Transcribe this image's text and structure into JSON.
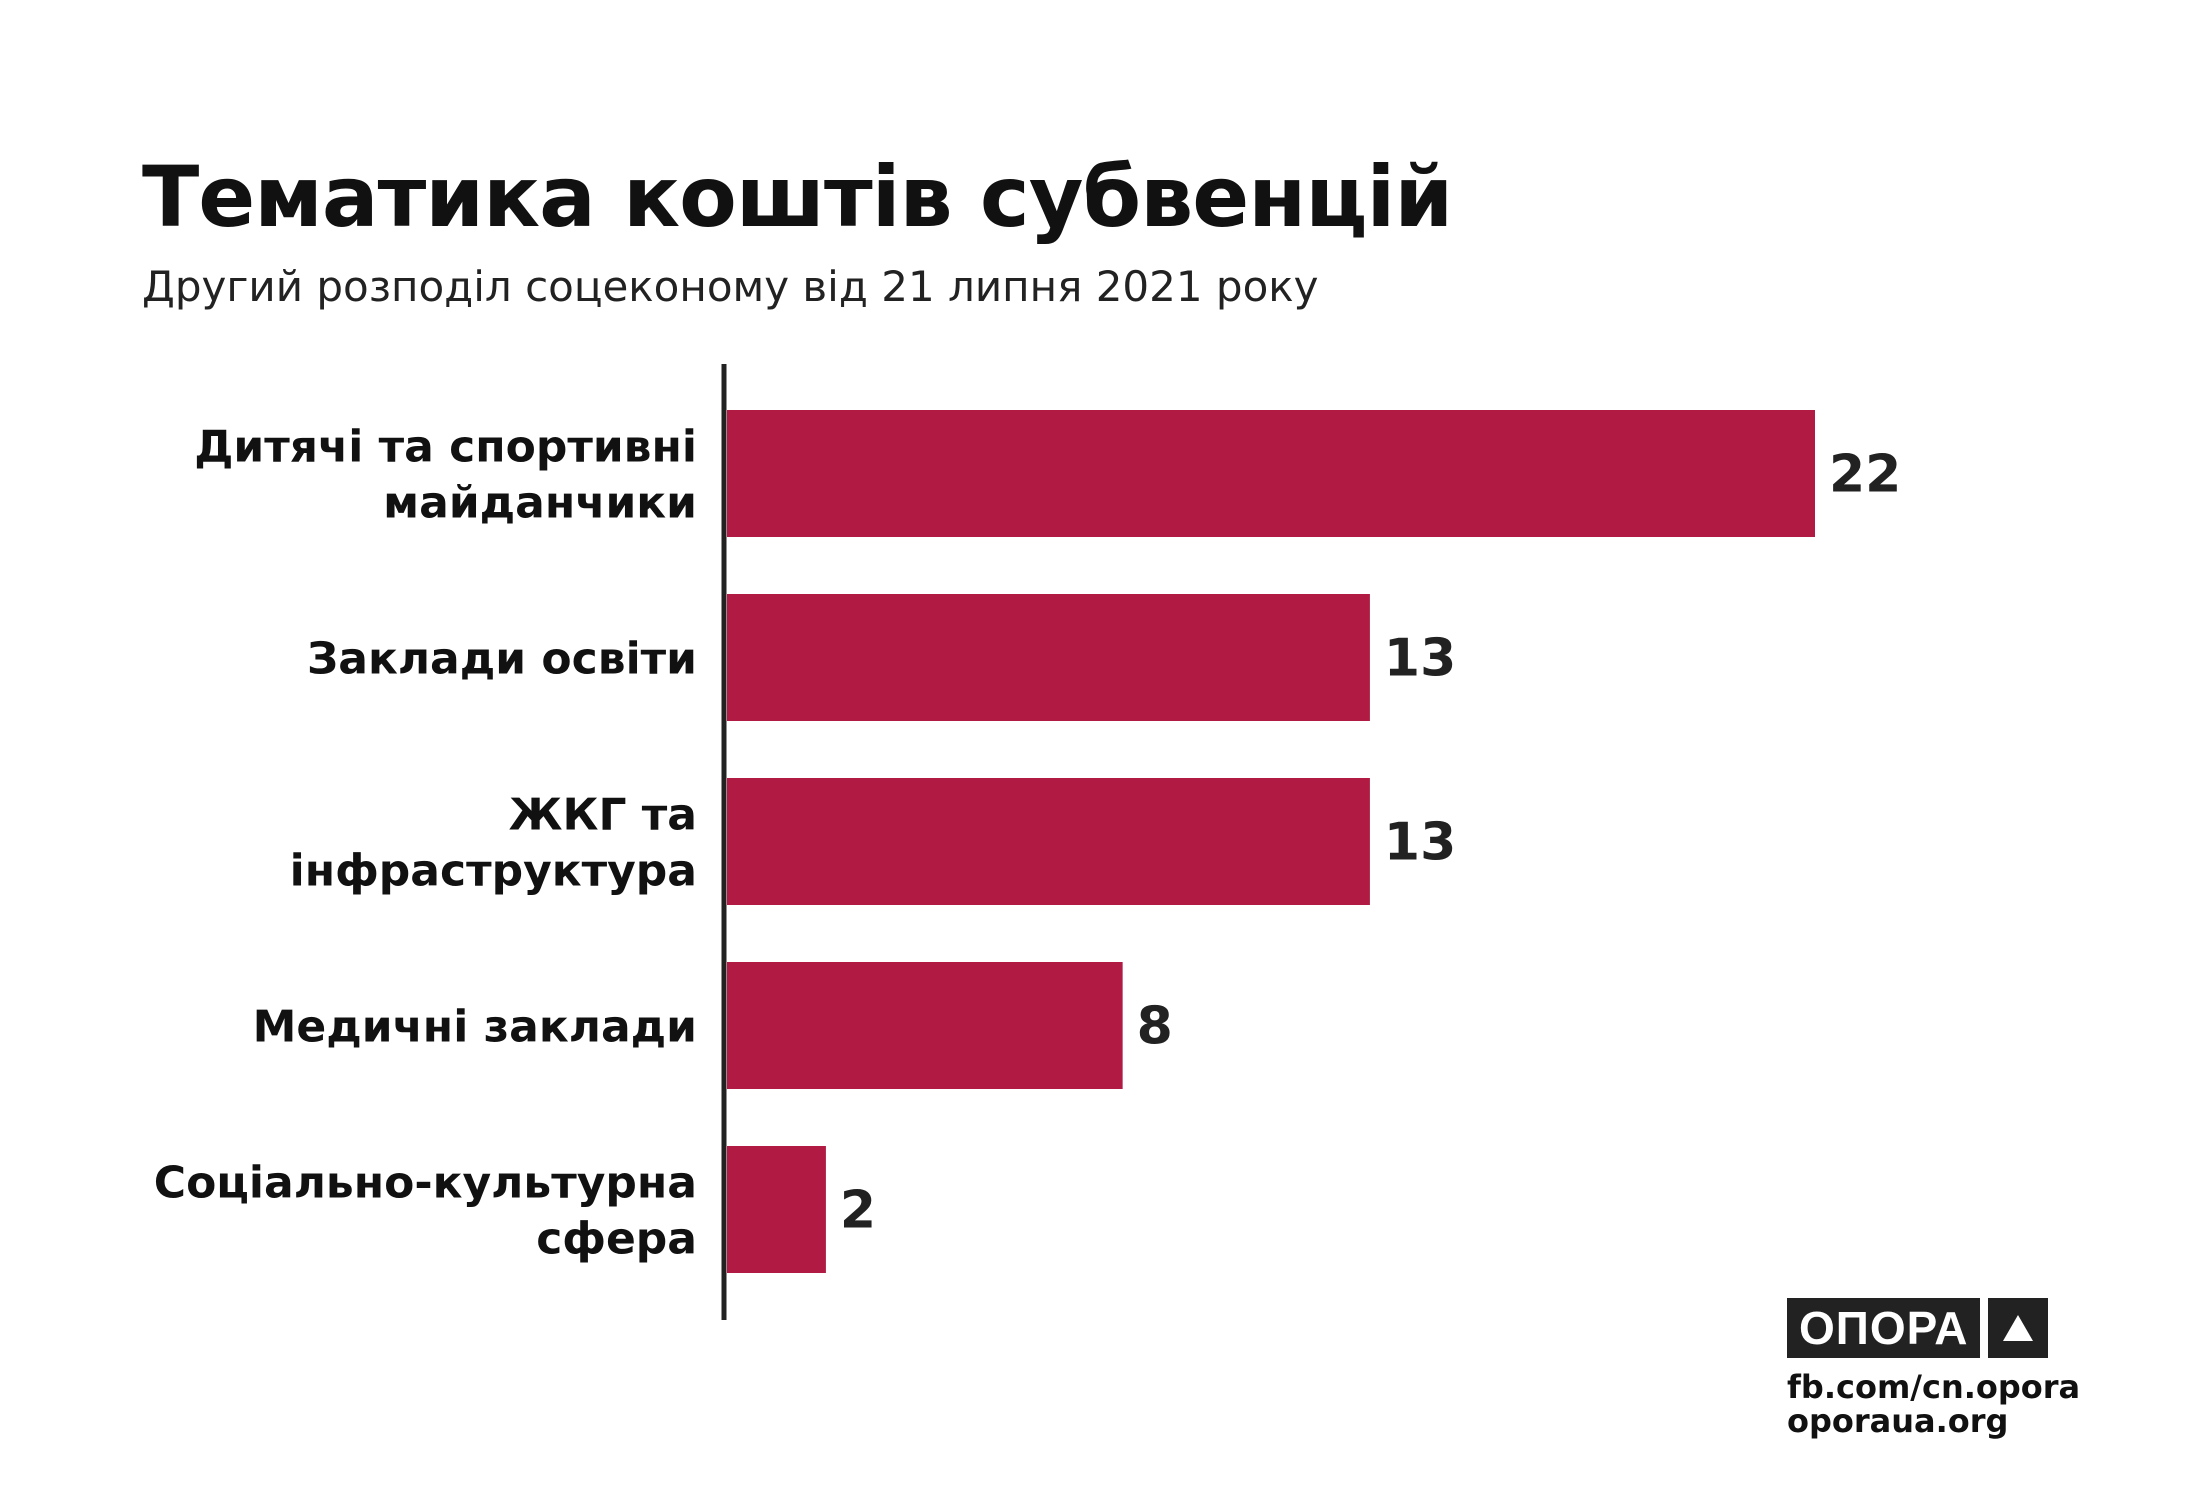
{
  "header": {
    "title": "Тематика коштів субвенцій",
    "subtitle": "Другий розподіл соцеконому від 21 липня 2021 року"
  },
  "chart_data": {
    "type": "bar",
    "orientation": "horizontal",
    "title": "Тематика коштів субвенцій",
    "subtitle": "Другий розподіл соцеконому від 21 липня 2021 року",
    "categories": [
      [
        "Дитячі та спортивні",
        "майданчики"
      ],
      [
        "Заклади освіти"
      ],
      [
        "ЖКГ та",
        "інфраструктура"
      ],
      [
        "Медичні заклади"
      ],
      [
        "Соціально-культурна",
        "сфера"
      ]
    ],
    "values": [
      22,
      13,
      13,
      8,
      2
    ],
    "xlim": [
      0,
      22
    ],
    "grid": false,
    "bar_color": "#b01a43"
  },
  "footer": {
    "logo_text": "ОПОРА",
    "links": [
      "fb.com/cn.opora",
      "oporaua.org"
    ]
  }
}
